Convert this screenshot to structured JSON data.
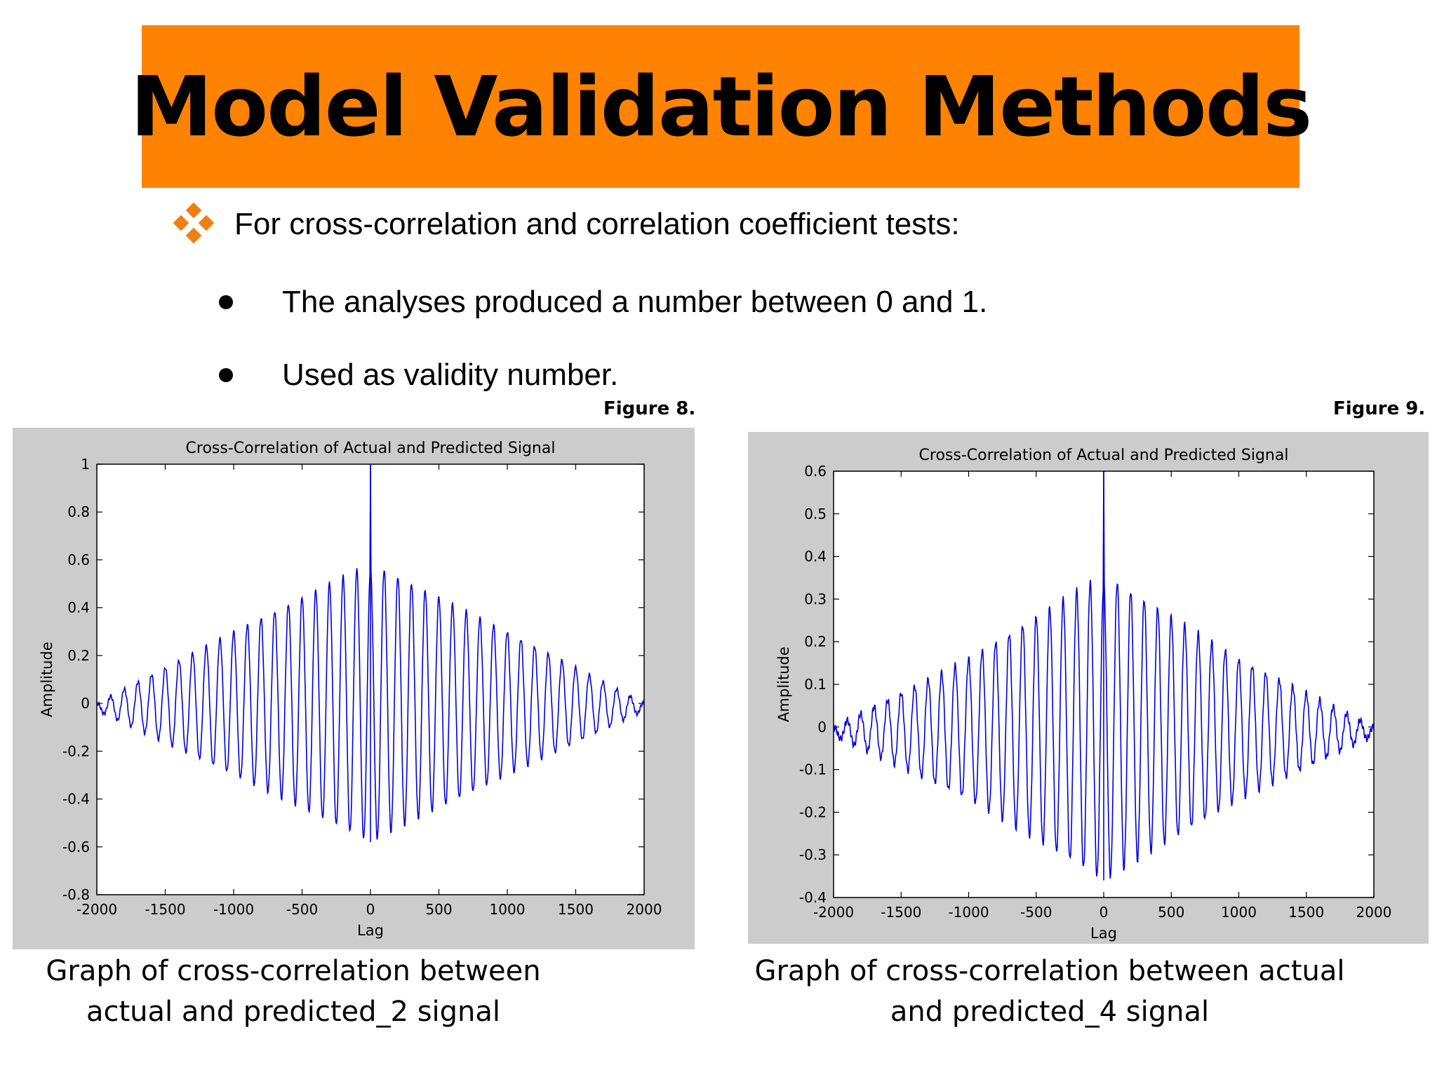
{
  "slide": {
    "title": "Model Validation Methods",
    "main_bullet": "For cross-correlation and correlation coefficient tests:",
    "sub_bullets": [
      "The analyses produced a number between 0 and 1.",
      "Used as validity number."
    ],
    "colors": {
      "banner": "#ff8300",
      "diamond": "#f07f12",
      "series": "#0000e0",
      "chart_bg": "#cccccc"
    }
  },
  "figures": [
    {
      "label": "Figure 8.",
      "caption_lines": [
        "Graph of cross-correlation between",
        "actual and predicted_2 signal"
      ]
    },
    {
      "label": "Figure 9.",
      "caption_lines": [
        "Graph of cross-correlation between actual",
        "and predicted_4 signal"
      ]
    }
  ],
  "chart_data": [
    {
      "type": "line",
      "title": "Cross-Correlation of Actual and Predicted Signal",
      "xlabel": "Lag",
      "ylabel": "Amplitude",
      "xlim": [
        -2000,
        2000
      ],
      "ylim": [
        -0.8,
        1
      ],
      "xticks": [
        -2000,
        -1500,
        -1000,
        -500,
        0,
        500,
        1000,
        1500,
        2000
      ],
      "yticks": [
        -0.8,
        -0.6,
        -0.4,
        -0.2,
        0,
        0.2,
        0.4,
        0.6,
        0.8,
        1
      ],
      "ytick_labels": [
        "-0.8",
        "-0.6",
        "-0.4",
        "-0.2",
        "0",
        "0.2",
        "0.4",
        "0.6",
        "0.8",
        "1"
      ],
      "grid": false,
      "series": [
        {
          "color": "#0000e0",
          "peak": {
            "x": 0,
            "y": 1
          },
          "oscillation_period": 100,
          "envelope_max": [
            [
              -2000,
              0.0
            ],
            [
              -1000,
              0.3
            ],
            [
              -100,
              0.56
            ],
            [
              100,
              0.56
            ],
            [
              1000,
              0.3
            ],
            [
              2000,
              0.0
            ]
          ],
          "envelope_min": [
            [
              -2000,
              -0.03
            ],
            [
              -1000,
              -0.3
            ],
            [
              0,
              -0.58
            ],
            [
              1000,
              -0.3
            ],
            [
              2000,
              -0.03
            ]
          ]
        }
      ]
    },
    {
      "type": "line",
      "title": "Cross-Correlation of Actual and Predicted Signal",
      "xlabel": "Lag",
      "ylabel": "Amplitude",
      "xlim": [
        -2000,
        2000
      ],
      "ylim": [
        -0.4,
        0.6
      ],
      "xticks": [
        -2000,
        -1500,
        -1000,
        -500,
        0,
        500,
        1000,
        1500,
        2000
      ],
      "yticks": [
        -0.4,
        -0.3,
        -0.2,
        -0.1,
        0,
        0.1,
        0.2,
        0.3,
        0.4,
        0.5,
        0.6
      ],
      "ytick_labels": [
        "-0.4",
        "-0.3",
        "-0.2",
        "-0.1",
        "0",
        "0.1",
        "0.2",
        "0.3",
        "0.4",
        "0.5",
        "0.6"
      ],
      "grid": false,
      "series": [
        {
          "color": "#0000e0",
          "peak": {
            "x": 0,
            "y": 0.6
          },
          "oscillation_period": 100,
          "envelope_max": [
            [
              -2000,
              0.0
            ],
            [
              -1000,
              0.16
            ],
            [
              -100,
              0.34
            ],
            [
              100,
              0.34
            ],
            [
              1000,
              0.16
            ],
            [
              2000,
              0.0
            ]
          ],
          "envelope_min": [
            [
              -2000,
              -0.02
            ],
            [
              -1000,
              -0.17
            ],
            [
              0,
              -0.36
            ],
            [
              1000,
              -0.17
            ],
            [
              2000,
              -0.02
            ]
          ]
        }
      ]
    }
  ]
}
